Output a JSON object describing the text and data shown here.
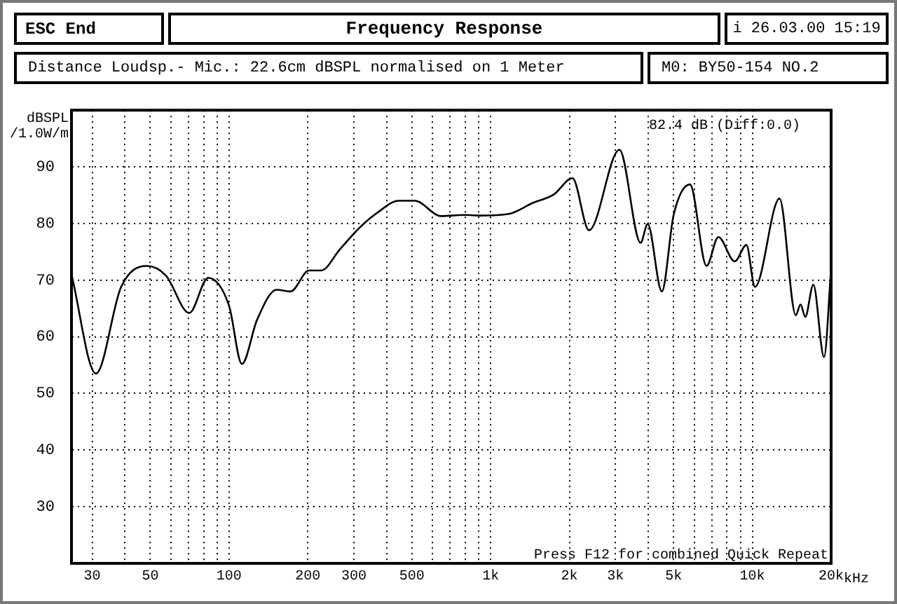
{
  "chart_data": {
    "type": "line",
    "title": "Frequency Response",
    "subtitle": "Distance Loudsp.- Mic.: 22.6cm dBSPL normalised on 1 Meter",
    "ylabel": "dBSPL /1.0W/m",
    "annotations": [
      "ESC End",
      "i 26.03.00 15:19",
      "M0: BY50-154 NO.2",
      "82.4 dB (Diff:0.0)",
      "Press F12 for combined Quick Repeat"
    ],
    "x": [
      25,
      31,
      38.7,
      48.6,
      57.4,
      70.5,
      83.2,
      100,
      112,
      128,
      152,
      172,
      202,
      225,
      265,
      313,
      369,
      445,
      514,
      645,
      793,
      917,
      1175,
      1445,
      1741,
      2054,
      2375,
      3105,
      3741,
      3981,
      4509,
      5002,
      5777,
      6683,
      7413,
      8566,
      9489,
      10230,
      12700,
      14660,
      15280,
      15930,
      17100,
      18790,
      20000
    ],
    "series": [
      {
        "color": "#000000",
        "values": [
          71,
          53.5,
          68.8,
          72.5,
          70.8,
          64.2,
          70.4,
          65.5,
          55.2,
          63,
          68.3,
          68,
          71.7,
          71.7,
          75.4,
          79.1,
          81.9,
          84,
          84,
          81.3,
          81.5,
          81.4,
          81.7,
          83.6,
          85.1,
          88,
          78.8,
          93,
          76.6,
          79.9,
          68,
          81.5,
          86.9,
          72.5,
          77.6,
          73.3,
          76.2,
          68.8,
          84.4,
          63.8,
          65.7,
          63.5,
          69.2,
          56.4,
          72
        ]
      }
    ],
    "xlim": [
      25,
      20000
    ],
    "xticks": [
      30,
      {
        "value": 40,
        "label": null
      },
      50,
      {
        "value": 60,
        "label": null
      },
      {
        "value": 70,
        "label": null
      },
      {
        "value": 80,
        "label": null
      },
      {
        "value": 90,
        "label": null
      },
      100,
      200,
      300,
      {
        "value": 400,
        "label": null
      },
      500,
      {
        "value": 600,
        "label": null
      },
      {
        "value": 700,
        "label": null
      },
      {
        "value": 800,
        "label": null
      },
      {
        "value": 900,
        "label": null
      },
      {
        "value": 1000,
        "label": "1k"
      },
      {
        "value": 2000,
        "label": "2k"
      },
      {
        "value": 3000,
        "label": "3k"
      },
      {
        "value": 4000,
        "label": null
      },
      {
        "value": 5000,
        "label": "5k"
      },
      {
        "value": 6000,
        "label": null
      },
      {
        "value": 7000,
        "label": null
      },
      {
        "value": 8000,
        "label": null
      },
      {
        "value": 9000,
        "label": null
      },
      {
        "value": 10000,
        "label": "10k"
      },
      {
        "value": 20000,
        "label": "20k"
      }
    ],
    "xlabel": "kHz",
    "ylim": [
      20,
      100
    ],
    "yticks": [
      30,
      40,
      50,
      60,
      70,
      80,
      90
    ],
    "log": "x",
    "grid": true,
    "marker": "none",
    "line_style": "solid"
  }
}
